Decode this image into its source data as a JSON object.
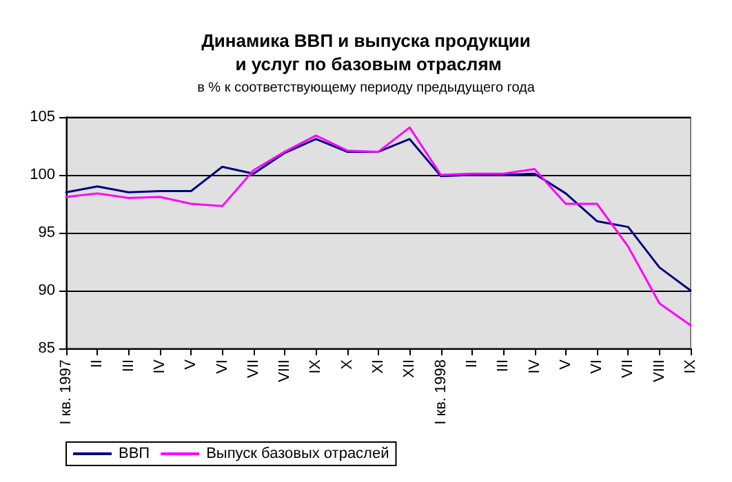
{
  "chart_data": {
    "type": "line",
    "title": "Динамика ВВП и выпуска продукции и услуг по базовым отраслям",
    "subtitle": "в % к соответствующему периоду предыдущего года",
    "categories": [
      "I кв. 1997",
      "II",
      "III",
      "IV",
      "V",
      "VI",
      "VII",
      "VIII",
      "IX",
      "X",
      "XI",
      "XII",
      "I кв. 1998",
      "II",
      "III",
      "IV",
      "V",
      "VI",
      "VII",
      "VIII",
      "IX"
    ],
    "series": [
      {
        "name": "ВВП",
        "color": "#000080",
        "values": [
          98.5,
          99.0,
          98.5,
          98.6,
          98.6,
          100.7,
          100.1,
          101.9,
          103.1,
          102.0,
          102.0,
          103.1,
          99.9,
          100.0,
          100.0,
          100.1,
          98.4,
          96.0,
          95.5,
          92.0,
          90.0
        ]
      },
      {
        "name": "Выпуск базовых отраслей",
        "color": "#ff00ff",
        "values": [
          98.1,
          98.4,
          98.0,
          98.1,
          97.5,
          97.3,
          100.4,
          102.0,
          103.4,
          102.1,
          102.0,
          104.1,
          100.0,
          100.1,
          100.1,
          100.5,
          97.5,
          97.5,
          93.8,
          88.9,
          87.0
        ]
      }
    ],
    "ylim": [
      85,
      105
    ],
    "yticks": [
      85,
      90,
      95,
      100,
      105
    ],
    "grid": "y",
    "legend": "bottom",
    "marker": "none",
    "line_style": "solid"
  }
}
